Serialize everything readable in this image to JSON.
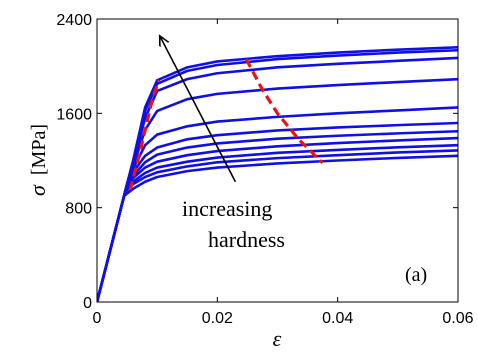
{
  "chart_data": {
    "type": "line",
    "xlabel": "ε",
    "ylabel": "σ",
    "ylabel_unit": "[MPa]",
    "xlim": [
      0,
      0.06
    ],
    "ylim": [
      0,
      2400
    ],
    "xticks": [
      0,
      0.02,
      0.04,
      0.06
    ],
    "xtick_labels": [
      "0",
      "0.02",
      "0.04",
      "0.06"
    ],
    "yticks": [
      0,
      800,
      1600,
      2400
    ],
    "ytick_labels": [
      "0",
      "800",
      "1600",
      "2400"
    ],
    "grid": false,
    "legend": "none",
    "panel_label": "(a)",
    "annotation": {
      "lines": [
        "increasing",
        "hardness"
      ],
      "arrow": {
        "from": [
          0.023,
          1020
        ],
        "to": [
          0.0105,
          2250
        ]
      }
    },
    "colors": {
      "curves": "#1010e0",
      "markers": "#ee1111",
      "annotation": "#000000"
    },
    "elastic_modulus_mpa": 200000,
    "series": [
      {
        "yield": 900,
        "curve": [
          [
            0.0045,
            900
          ],
          [
            0.006,
            960
          ],
          [
            0.008,
            1020
          ],
          [
            0.01,
            1060
          ],
          [
            0.015,
            1110
          ],
          [
            0.02,
            1140
          ],
          [
            0.03,
            1175
          ],
          [
            0.04,
            1200
          ],
          [
            0.05,
            1222
          ],
          [
            0.06,
            1240
          ]
        ]
      },
      {
        "yield": 930,
        "curve": [
          [
            0.00465,
            930
          ],
          [
            0.006,
            1000
          ],
          [
            0.008,
            1060
          ],
          [
            0.01,
            1100
          ],
          [
            0.015,
            1150
          ],
          [
            0.02,
            1185
          ],
          [
            0.03,
            1220
          ],
          [
            0.04,
            1245
          ],
          [
            0.05,
            1268
          ],
          [
            0.06,
            1285
          ]
        ]
      },
      {
        "yield": 945,
        "curve": [
          [
            0.00473,
            945
          ],
          [
            0.006,
            1020
          ],
          [
            0.008,
            1095
          ],
          [
            0.01,
            1140
          ],
          [
            0.015,
            1190
          ],
          [
            0.02,
            1225
          ],
          [
            0.03,
            1265
          ],
          [
            0.04,
            1290
          ],
          [
            0.05,
            1312
          ],
          [
            0.06,
            1330
          ]
        ]
      },
      {
        "yield": 960,
        "curve": [
          [
            0.0048,
            960
          ],
          [
            0.006,
            1050
          ],
          [
            0.008,
            1140
          ],
          [
            0.01,
            1190
          ],
          [
            0.015,
            1245
          ],
          [
            0.02,
            1280
          ],
          [
            0.03,
            1320
          ],
          [
            0.04,
            1348
          ],
          [
            0.05,
            1370
          ],
          [
            0.06,
            1390
          ]
        ]
      },
      {
        "yield": 975,
        "curve": [
          [
            0.00488,
            975
          ],
          [
            0.006,
            1070
          ],
          [
            0.008,
            1185
          ],
          [
            0.01,
            1250
          ],
          [
            0.015,
            1310
          ],
          [
            0.02,
            1345
          ],
          [
            0.03,
            1385
          ],
          [
            0.04,
            1410
          ],
          [
            0.05,
            1430
          ],
          [
            0.06,
            1448
          ]
        ]
      },
      {
        "yield": 990,
        "curve": [
          [
            0.00495,
            990
          ],
          [
            0.006,
            1100
          ],
          [
            0.008,
            1240
          ],
          [
            0.01,
            1310
          ],
          [
            0.015,
            1380
          ],
          [
            0.02,
            1415
          ],
          [
            0.03,
            1455
          ],
          [
            0.04,
            1480
          ],
          [
            0.05,
            1500
          ],
          [
            0.06,
            1518
          ]
        ]
      },
      {
        "yield": 1000,
        "curve": [
          [
            0.005,
            1000
          ],
          [
            0.006,
            1130
          ],
          [
            0.008,
            1330
          ],
          [
            0.01,
            1420
          ],
          [
            0.015,
            1490
          ],
          [
            0.02,
            1530
          ],
          [
            0.03,
            1570
          ],
          [
            0.04,
            1600
          ],
          [
            0.05,
            1625
          ],
          [
            0.06,
            1650
          ]
        ]
      },
      {
        "yield": 1010,
        "curve": [
          [
            0.00505,
            1010
          ],
          [
            0.006,
            1150
          ],
          [
            0.008,
            1460
          ],
          [
            0.01,
            1620
          ],
          [
            0.015,
            1720
          ],
          [
            0.02,
            1765
          ],
          [
            0.03,
            1810
          ],
          [
            0.04,
            1840
          ],
          [
            0.05,
            1865
          ],
          [
            0.06,
            1890
          ]
        ]
      },
      {
        "yield": 1020,
        "curve": [
          [
            0.0051,
            1020
          ],
          [
            0.006,
            1170
          ],
          [
            0.008,
            1560
          ],
          [
            0.01,
            1790
          ],
          [
            0.015,
            1890
          ],
          [
            0.02,
            1940
          ],
          [
            0.03,
            1990
          ],
          [
            0.04,
            2020
          ],
          [
            0.05,
            2045
          ],
          [
            0.06,
            2070
          ]
        ]
      },
      {
        "yield": 1030,
        "curve": [
          [
            0.00515,
            1030
          ],
          [
            0.006,
            1190
          ],
          [
            0.008,
            1620
          ],
          [
            0.01,
            1850
          ],
          [
            0.015,
            1960
          ],
          [
            0.02,
            2010
          ],
          [
            0.03,
            2060
          ],
          [
            0.04,
            2090
          ],
          [
            0.05,
            2115
          ],
          [
            0.06,
            2135
          ]
        ]
      },
      {
        "yield": 1040,
        "curve": [
          [
            0.0052,
            1040
          ],
          [
            0.006,
            1200
          ],
          [
            0.008,
            1650
          ],
          [
            0.01,
            1880
          ],
          [
            0.015,
            1990
          ],
          [
            0.02,
            2040
          ],
          [
            0.03,
            2085
          ],
          [
            0.04,
            2115
          ],
          [
            0.05,
            2140
          ],
          [
            0.06,
            2160
          ]
        ]
      }
    ],
    "markers": [
      {
        "style": "dashed",
        "points": [
          [
            0.0055,
            950
          ],
          [
            0.0068,
            1200
          ],
          [
            0.0082,
            1500
          ],
          [
            0.0092,
            1720
          ],
          [
            0.0103,
            1880
          ]
        ]
      },
      {
        "style": "dashed",
        "points": [
          [
            0.0248,
            2060
          ],
          [
            0.0275,
            1800
          ],
          [
            0.03,
            1600
          ],
          [
            0.0335,
            1380
          ],
          [
            0.0375,
            1180
          ]
        ]
      }
    ]
  }
}
